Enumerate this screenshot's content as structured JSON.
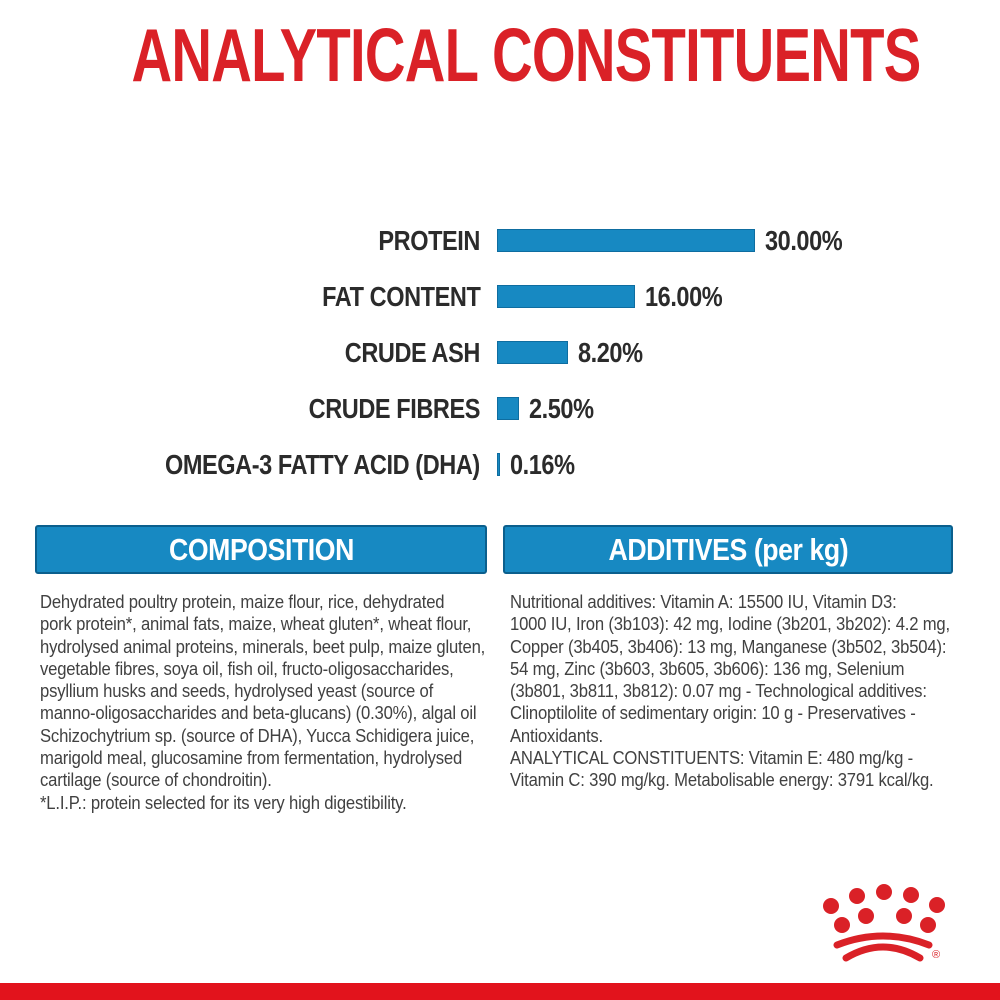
{
  "title": "ANALYTICAL CONSTITUENTS",
  "chart_data": {
    "type": "bar",
    "orientation": "horizontal",
    "title": "ANALYTICAL CONSTITUENTS",
    "categories": [
      "PROTEIN",
      "FAT CONTENT",
      "CRUDE ASH",
      "CRUDE FIBRES",
      "OMEGA-3 FATTY ACID (DHA)"
    ],
    "values": [
      30.0,
      16.0,
      8.2,
      2.5,
      0.16
    ],
    "value_labels": [
      "30.00%",
      "16.00%",
      "8.20%",
      "2.50%",
      "0.16%"
    ],
    "unit": "%",
    "xlim": [
      0,
      30
    ],
    "grid": false,
    "legend": false,
    "bar_color": "#1789c2"
  },
  "sections": {
    "composition": {
      "header": "COMPOSITION",
      "lines": [
        "Dehydrated poultry protein, maize flour, rice, dehydrated",
        "pork protein*, animal fats, maize, wheat gluten*, wheat flour,",
        "hydrolysed animal proteins, minerals, beet pulp, maize gluten,",
        "vegetable fibres, soya oil, fish oil, fructo-oligosaccharides,",
        "psyllium husks and seeds, hydrolysed yeast (source of",
        "manno-oligosaccharides and beta-glucans) (0.30%), algal oil",
        "Schizochytrium sp. (source of DHA), Yucca Schidigera juice,",
        "marigold meal, glucosamine from fermentation, hydrolysed",
        "cartilage (source of chondroitin).",
        "*L.I.P.: protein selected for its very high digestibility."
      ]
    },
    "additives": {
      "header": "ADDITIVES (per kg)",
      "lines": [
        "Nutritional additives: Vitamin A: 15500 IU, Vitamin D3:",
        "1000 IU, Iron (3b103): 42 mg, Iodine (3b201, 3b202): 4.2 mg,",
        "Copper (3b405, 3b406): 13 mg, Manganese (3b502, 3b504):",
        "54 mg, Zinc (3b603, 3b605, 3b606): 136 mg, Selenium",
        "(3b801, 3b811, 3b812): 0.07 mg - Technological additives:",
        "Clinoptilolite of sedimentary origin: 10 g - Preservatives -",
        "Antioxidants.",
        "ANALYTICAL CONSTITUENTS: Vitamin E: 480 mg/kg -",
        "Vitamin C: 390 mg/kg. Metabolisable energy: 3791 kcal/kg."
      ]
    }
  },
  "branding": {
    "logo": "royal-canin-crown",
    "registered_mark": "®"
  },
  "colors": {
    "title_red": "#da2127",
    "bar_blue": "#1789c2",
    "header_border_blue": "#0b5f8d",
    "body_text": "#414141",
    "bottom_bar_red": "#e2131c"
  }
}
